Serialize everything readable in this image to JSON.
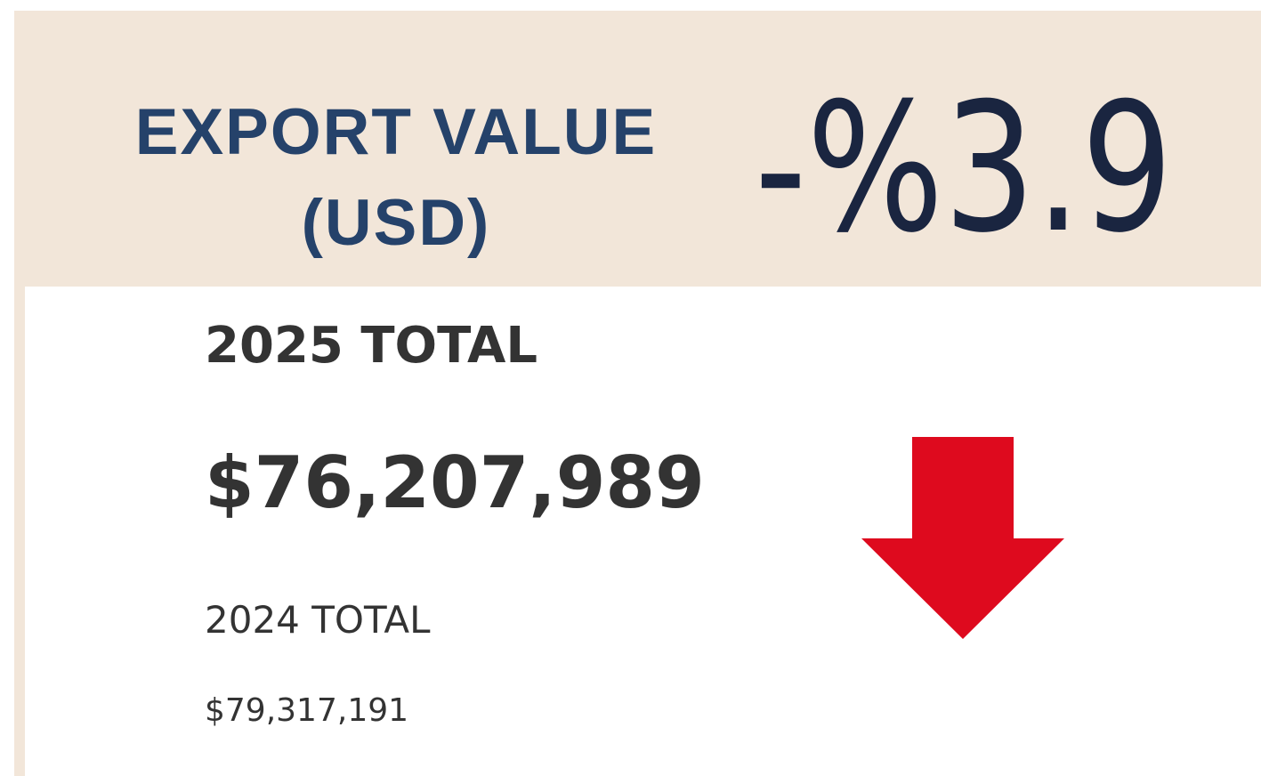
{
  "header": {
    "title": "EXPORT VALUE (USD)",
    "change": "-%3.9"
  },
  "current": {
    "label": "2025 TOTAL",
    "value": "$76,207,989"
  },
  "previous": {
    "label": "2024 TOTAL",
    "value": "$79,317,191"
  }
}
